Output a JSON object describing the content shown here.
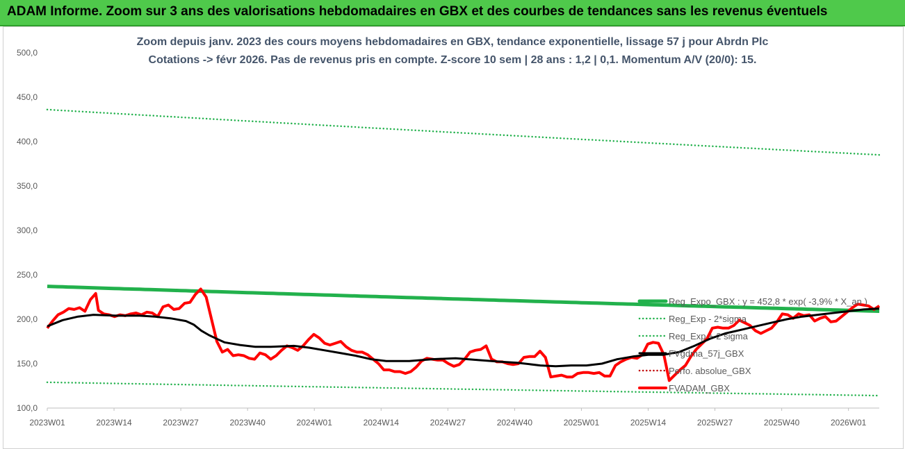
{
  "header": {
    "title": "ADAM Informe. Zoom sur 3 ans des valorisations hebdomadaires en GBX et des courbes de tendances sans les revenus éventuels"
  },
  "chart_data": {
    "type": "line",
    "title": "Zoom depuis janv. 2023 des cours moyens hebdomadaires en GBX, tendance exponentielle, lissage 57 j pour Abrdn Plc",
    "subtitle": "Cotations -> févr 2026. Pas de revenus pris en compte. Z-score 10 sem | 28 ans : 1,2 | 0,1. Momentum A/V (20/0): 15.",
    "ylim": [
      100,
      500
    ],
    "yticks": [
      "100,0",
      "150,0",
      "200,0",
      "250,0",
      "300,0",
      "350,0",
      "400,0",
      "450,0",
      "500,0"
    ],
    "xticks": [
      "2023W01",
      "2023W14",
      "2023W27",
      "2023W40",
      "2024W01",
      "2024W14",
      "2024W27",
      "2024W40",
      "2025W01",
      "2025W14",
      "2025W27",
      "2025W40",
      "2026W01"
    ],
    "weeks_count": 163,
    "grid": false,
    "legend_position": "right",
    "series": [
      {
        "name": "Reg_Expo_GBX : y = 452,8 * exp( -3,9% * X_an )",
        "color": "#22b14c",
        "style": "solid-thick",
        "start": 237,
        "end": 209
      },
      {
        "name": "Reg_Exp - 2*sigma",
        "color": "#22b14c",
        "style": "dotted",
        "start": 129,
        "end": 114
      },
      {
        "name": "Reg_Exp + 2 sigma",
        "color": "#22b14c",
        "style": "dotted",
        "start": 436,
        "end": 385
      },
      {
        "name": "FVgdma_57j_GBX",
        "color": "#000000",
        "style": "solid",
        "points": [
          [
            0,
            192
          ],
          [
            4,
            199
          ],
          [
            8,
            203
          ],
          [
            12,
            205
          ],
          [
            18,
            204
          ],
          [
            24,
            204
          ],
          [
            28,
            203
          ],
          [
            32,
            201
          ],
          [
            36,
            198
          ],
          [
            38,
            194
          ],
          [
            40,
            187
          ],
          [
            42,
            182
          ],
          [
            44,
            178
          ],
          [
            46,
            174
          ],
          [
            50,
            171
          ],
          [
            54,
            169
          ],
          [
            58,
            169
          ],
          [
            64,
            170
          ],
          [
            68,
            168
          ],
          [
            72,
            165
          ],
          [
            76,
            162
          ],
          [
            80,
            159
          ],
          [
            84,
            155
          ],
          [
            88,
            153
          ],
          [
            94,
            153
          ],
          [
            100,
            155
          ],
          [
            106,
            156
          ],
          [
            112,
            154
          ],
          [
            118,
            152
          ],
          [
            122,
            151
          ],
          [
            128,
            148
          ],
          [
            132,
            147
          ],
          [
            136,
            148
          ],
          [
            140,
            148
          ],
          [
            144,
            150
          ],
          [
            148,
            155
          ],
          [
            152,
            158
          ],
          [
            156,
            160
          ],
          [
            160,
            160
          ],
          [
            164,
            163
          ],
          [
            168,
            170
          ],
          [
            172,
            178
          ],
          [
            176,
            184
          ],
          [
            180,
            188
          ],
          [
            184,
            192
          ],
          [
            188,
            196
          ],
          [
            192,
            200
          ],
          [
            196,
            203
          ],
          [
            200,
            205
          ],
          [
            204,
            207
          ],
          [
            208,
            209
          ],
          [
            212,
            211
          ],
          [
            216,
            212
          ]
        ]
      },
      {
        "name": "Perfo. absolue_GBX",
        "color": "#c00000",
        "style": "dotted"
      },
      {
        "name": "FVADAM_GBX",
        "color": "#ff0000",
        "style": "solid-thick",
        "points": [
          [
            0,
            190
          ],
          [
            2,
            198
          ],
          [
            4,
            205
          ],
          [
            6,
            208
          ],
          [
            8,
            212
          ],
          [
            10,
            211
          ],
          [
            12,
            213
          ],
          [
            14,
            209
          ],
          [
            16,
            222
          ],
          [
            18,
            229
          ],
          [
            19,
            210
          ],
          [
            21,
            206
          ],
          [
            23,
            205
          ],
          [
            25,
            203
          ],
          [
            27,
            205
          ],
          [
            29,
            204
          ],
          [
            31,
            206
          ],
          [
            33,
            207
          ],
          [
            35,
            205
          ],
          [
            37,
            208
          ],
          [
            39,
            207
          ],
          [
            41,
            203
          ],
          [
            43,
            214
          ],
          [
            45,
            216
          ],
          [
            47,
            211
          ],
          [
            49,
            212
          ],
          [
            51,
            218
          ],
          [
            53,
            219
          ],
          [
            55,
            228
          ],
          [
            57,
            234
          ],
          [
            59,
            225
          ],
          [
            61,
            200
          ],
          [
            63,
            175
          ],
          [
            65,
            163
          ],
          [
            67,
            166
          ],
          [
            69,
            159
          ],
          [
            71,
            160
          ],
          [
            73,
            159
          ],
          [
            75,
            156
          ],
          [
            77,
            155
          ],
          [
            79,
            162
          ],
          [
            81,
            160
          ],
          [
            83,
            155
          ],
          [
            85,
            159
          ],
          [
            87,
            165
          ],
          [
            89,
            170
          ],
          [
            91,
            168
          ],
          [
            93,
            165
          ],
          [
            95,
            170
          ],
          [
            97,
            177
          ],
          [
            99,
            183
          ],
          [
            101,
            179
          ],
          [
            103,
            173
          ],
          [
            105,
            171
          ],
          [
            107,
            173
          ],
          [
            109,
            175
          ],
          [
            111,
            169
          ],
          [
            113,
            165
          ],
          [
            115,
            163
          ],
          [
            117,
            163
          ],
          [
            119,
            160
          ],
          [
            121,
            155
          ],
          [
            123,
            150
          ],
          [
            125,
            143
          ],
          [
            127,
            143
          ],
          [
            129,
            141
          ],
          [
            131,
            141
          ],
          [
            133,
            139
          ],
          [
            135,
            141
          ],
          [
            137,
            146
          ],
          [
            139,
            153
          ],
          [
            141,
            156
          ],
          [
            143,
            155
          ],
          [
            145,
            154
          ],
          [
            147,
            154
          ],
          [
            149,
            150
          ],
          [
            151,
            147
          ],
          [
            153,
            149
          ],
          [
            155,
            155
          ],
          [
            157,
            163
          ],
          [
            159,
            165
          ],
          [
            161,
            166
          ],
          [
            163,
            170
          ],
          [
            165,
            155
          ],
          [
            167,
            152
          ],
          [
            169,
            152
          ],
          [
            171,
            150
          ],
          [
            173,
            149
          ],
          [
            175,
            150
          ],
          [
            177,
            157
          ],
          [
            179,
            158
          ],
          [
            181,
            158
          ],
          [
            183,
            164
          ],
          [
            185,
            157
          ],
          [
            187,
            135
          ],
          [
            189,
            136
          ],
          [
            191,
            137
          ],
          [
            193,
            135
          ],
          [
            195,
            135
          ],
          [
            197,
            139
          ],
          [
            199,
            140
          ],
          [
            201,
            140
          ],
          [
            203,
            139
          ],
          [
            205,
            140
          ],
          [
            207,
            136
          ],
          [
            209,
            136
          ],
          [
            211,
            148
          ],
          [
            213,
            152
          ],
          [
            215,
            155
          ],
          [
            217,
            157
          ],
          [
            219,
            156
          ],
          [
            221,
            160
          ],
          [
            223,
            172
          ],
          [
            225,
            174
          ],
          [
            227,
            173
          ],
          [
            229,
            160
          ],
          [
            231,
            131
          ],
          [
            233,
            137
          ],
          [
            235,
            143
          ],
          [
            237,
            148
          ],
          [
            239,
            158
          ],
          [
            241,
            166
          ],
          [
            243,
            172
          ],
          [
            245,
            178
          ],
          [
            247,
            190
          ],
          [
            249,
            191
          ],
          [
            251,
            190
          ],
          [
            253,
            190
          ],
          [
            255,
            193
          ],
          [
            257,
            199
          ],
          [
            259,
            196
          ],
          [
            261,
            193
          ],
          [
            263,
            187
          ],
          [
            265,
            184
          ],
          [
            267,
            187
          ],
          [
            269,
            190
          ],
          [
            271,
            197
          ],
          [
            273,
            206
          ],
          [
            275,
            205
          ],
          [
            277,
            201
          ],
          [
            279,
            206
          ],
          [
            281,
            204
          ],
          [
            283,
            205
          ],
          [
            285,
            198
          ],
          [
            287,
            201
          ],
          [
            289,
            203
          ],
          [
            291,
            197
          ],
          [
            293,
            198
          ],
          [
            295,
            203
          ],
          [
            297,
            208
          ],
          [
            299,
            213
          ],
          [
            301,
            217
          ],
          [
            303,
            216
          ],
          [
            305,
            215
          ],
          [
            307,
            211
          ],
          [
            309,
            215
          ]
        ],
        "x_scale_note": ""
      }
    ]
  }
}
